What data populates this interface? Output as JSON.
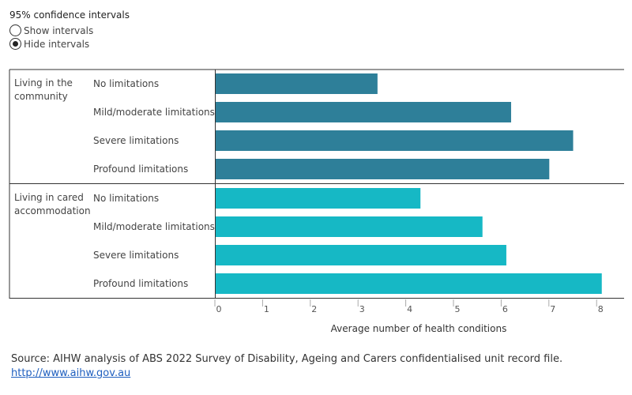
{
  "controls": {
    "title": "95% confidence intervals",
    "options": [
      {
        "label": "Show intervals",
        "checked": false
      },
      {
        "label": "Hide intervals",
        "checked": true
      }
    ]
  },
  "chart_data": {
    "type": "bar",
    "orientation": "horizontal",
    "xlabel": "Average number of health conditions",
    "xlim": [
      0,
      8.2
    ],
    "xticks": [
      "0",
      "1",
      "2",
      "3",
      "4",
      "5",
      "6",
      "7",
      "8"
    ],
    "groups": [
      {
        "label": "Living in the community",
        "label_lines": [
          "Living in the",
          "community"
        ],
        "color": "#2e7f99",
        "categories": [
          "No limitations",
          "Mild/moderate limitations",
          "Severe limitations",
          "Profound limitations"
        ],
        "values": [
          3.4,
          6.2,
          7.5,
          7.0
        ]
      },
      {
        "label": "Living in cared accommodation",
        "label_lines": [
          "Living in cared",
          "accommodation"
        ],
        "color": "#16b8c5",
        "categories": [
          "No limitations",
          "Mild/moderate limitations",
          "Severe limitations",
          "Profound limitations"
        ],
        "values": [
          4.3,
          5.6,
          6.1,
          8.1
        ]
      }
    ]
  },
  "source": {
    "text": "Source: AIHW analysis of ABS 2022 Survey of Disability, Ageing and Carers confidentialised unit record file.",
    "link": "http://www.aihw.gov.au"
  }
}
